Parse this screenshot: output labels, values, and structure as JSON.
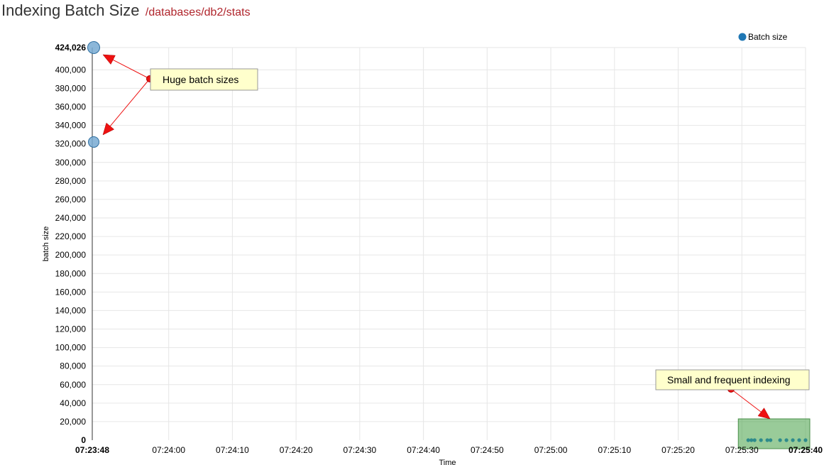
{
  "header": {
    "title": "Indexing Batch Size",
    "path": "/databases/db2/stats"
  },
  "legend": {
    "label": "Batch size",
    "color": "#1f77b4",
    "placement": "top-right"
  },
  "annotations": {
    "huge": "Huge batch sizes",
    "small": "Small and frequent indexing"
  },
  "chart_data": {
    "type": "scatter",
    "title": "",
    "xlabel": "Time",
    "ylabel": "batch size",
    "grid": true,
    "ylim": [
      0,
      424026
    ],
    "xlim": [
      "07:23:48",
      "07:25:40"
    ],
    "y_ticks": [
      {
        "value": 0,
        "label": "0",
        "bold": true
      },
      {
        "value": 20000,
        "label": "20,000"
      },
      {
        "value": 40000,
        "label": "40,000"
      },
      {
        "value": 60000,
        "label": "60,000"
      },
      {
        "value": 80000,
        "label": "80,000"
      },
      {
        "value": 100000,
        "label": "100,000"
      },
      {
        "value": 120000,
        "label": "120,000"
      },
      {
        "value": 140000,
        "label": "140,000"
      },
      {
        "value": 160000,
        "label": "160,000"
      },
      {
        "value": 180000,
        "label": "180,000"
      },
      {
        "value": 200000,
        "label": "200,000"
      },
      {
        "value": 220000,
        "label": "220,000"
      },
      {
        "value": 240000,
        "label": "240,000"
      },
      {
        "value": 260000,
        "label": "260,000"
      },
      {
        "value": 280000,
        "label": "280,000"
      },
      {
        "value": 300000,
        "label": "300,000"
      },
      {
        "value": 320000,
        "label": "320,000"
      },
      {
        "value": 340000,
        "label": "340,000"
      },
      {
        "value": 360000,
        "label": "360,000"
      },
      {
        "value": 380000,
        "label": "380,000"
      },
      {
        "value": 400000,
        "label": "400,000"
      },
      {
        "value": 424026,
        "label": "424,026",
        "bold": true
      }
    ],
    "x_ticks": [
      {
        "value": "07:23:48",
        "label": "07:23:48",
        "bold": true
      },
      {
        "value": "07:24:00",
        "label": "07:24:00"
      },
      {
        "value": "07:24:10",
        "label": "07:24:10"
      },
      {
        "value": "07:24:20",
        "label": "07:24:20"
      },
      {
        "value": "07:24:30",
        "label": "07:24:30"
      },
      {
        "value": "07:24:40",
        "label": "07:24:40"
      },
      {
        "value": "07:24:50",
        "label": "07:24:50"
      },
      {
        "value": "07:25:00",
        "label": "07:25:00"
      },
      {
        "value": "07:25:10",
        "label": "07:25:10"
      },
      {
        "value": "07:25:20",
        "label": "07:25:20"
      },
      {
        "value": "07:25:30",
        "label": "07:25:30"
      },
      {
        "value": "07:25:40",
        "label": "07:25:40",
        "bold": true
      }
    ],
    "series": [
      {
        "name": "Batch size",
        "color": "#1f77b4",
        "points": [
          {
            "x": "07:23:48",
            "y": 424026,
            "size": "large"
          },
          {
            "x": "07:23:48",
            "y": 322000,
            "size": "large"
          },
          {
            "x": "07:25:31",
            "y": 0
          },
          {
            "x": "07:25:31.5",
            "y": 0
          },
          {
            "x": "07:25:32",
            "y": 0
          },
          {
            "x": "07:25:33",
            "y": 0
          },
          {
            "x": "07:25:34",
            "y": 0
          },
          {
            "x": "07:25:34.5",
            "y": 0
          },
          {
            "x": "07:25:36",
            "y": 0
          },
          {
            "x": "07:25:37",
            "y": 0
          },
          {
            "x": "07:25:38",
            "y": 0
          },
          {
            "x": "07:25:39",
            "y": 0
          },
          {
            "x": "07:25:40",
            "y": 0
          }
        ]
      }
    ]
  }
}
